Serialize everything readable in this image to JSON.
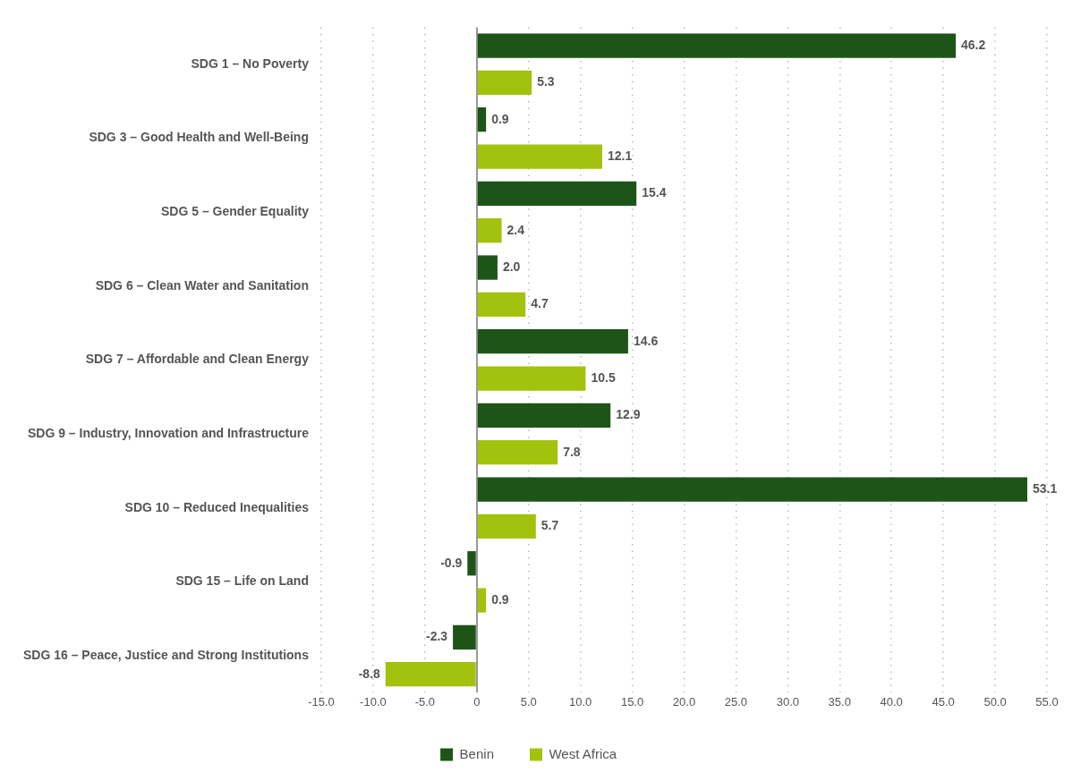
{
  "chart_data": {
    "type": "bar",
    "orientation": "horizontal",
    "categories": [
      "SDG 1 – No Poverty",
      "SDG 3 – Good Health and Well-Being",
      "SDG 5 – Gender Equality",
      "SDG 6 – Clean Water and Sanitation",
      "SDG 7 – Affordable and Clean Energy",
      "SDG 9 – Industry, Innovation and Infrastructure",
      "SDG 10 – Reduced Inequalities",
      "SDG 15 – Life on Land",
      "SDG 16 – Peace, Justice and Strong Institutions"
    ],
    "series": [
      {
        "name": "Benin",
        "color": "#1e5418",
        "values": [
          46.2,
          0.9,
          15.4,
          2.0,
          14.6,
          12.9,
          53.1,
          -0.9,
          -2.3
        ],
        "value_labels": [
          "46.2",
          "0.9",
          "15.4",
          "2.0",
          "14.6",
          "12.9",
          "53.1",
          "-0.9",
          "-2.3"
        ]
      },
      {
        "name": "West Africa",
        "color": "#a2c20e",
        "values": [
          5.3,
          12.1,
          2.4,
          4.7,
          10.5,
          7.8,
          5.7,
          0.9,
          -8.8
        ],
        "value_labels": [
          "5.3",
          "12.1",
          "2.4",
          "4.7",
          "10.5",
          "7.8",
          "5.7",
          "0.9",
          "-8.8"
        ]
      }
    ],
    "xlim": [
      -15,
      55
    ],
    "xticks": [
      {
        "value": -15,
        "label": "-15.0"
      },
      {
        "value": -10,
        "label": "-10.0"
      },
      {
        "value": -5,
        "label": "-5.0"
      },
      0,
      {
        "value": 5,
        "label": "5.0"
      },
      {
        "value": 10,
        "label": "10.0"
      },
      {
        "value": 15,
        "label": "15.0"
      },
      {
        "value": 20,
        "label": "20.0"
      },
      {
        "value": 25,
        "label": "25.0"
      },
      {
        "value": 30,
        "label": "30.0"
      },
      {
        "value": 35,
        "label": "35.0"
      },
      {
        "value": 40,
        "label": "40.0"
      },
      {
        "value": 45,
        "label": "45.0"
      },
      {
        "value": 50,
        "label": "50.0"
      },
      {
        "value": 55,
        "label": "55.0"
      }
    ],
    "grid": "x",
    "legend": "bottom"
  }
}
